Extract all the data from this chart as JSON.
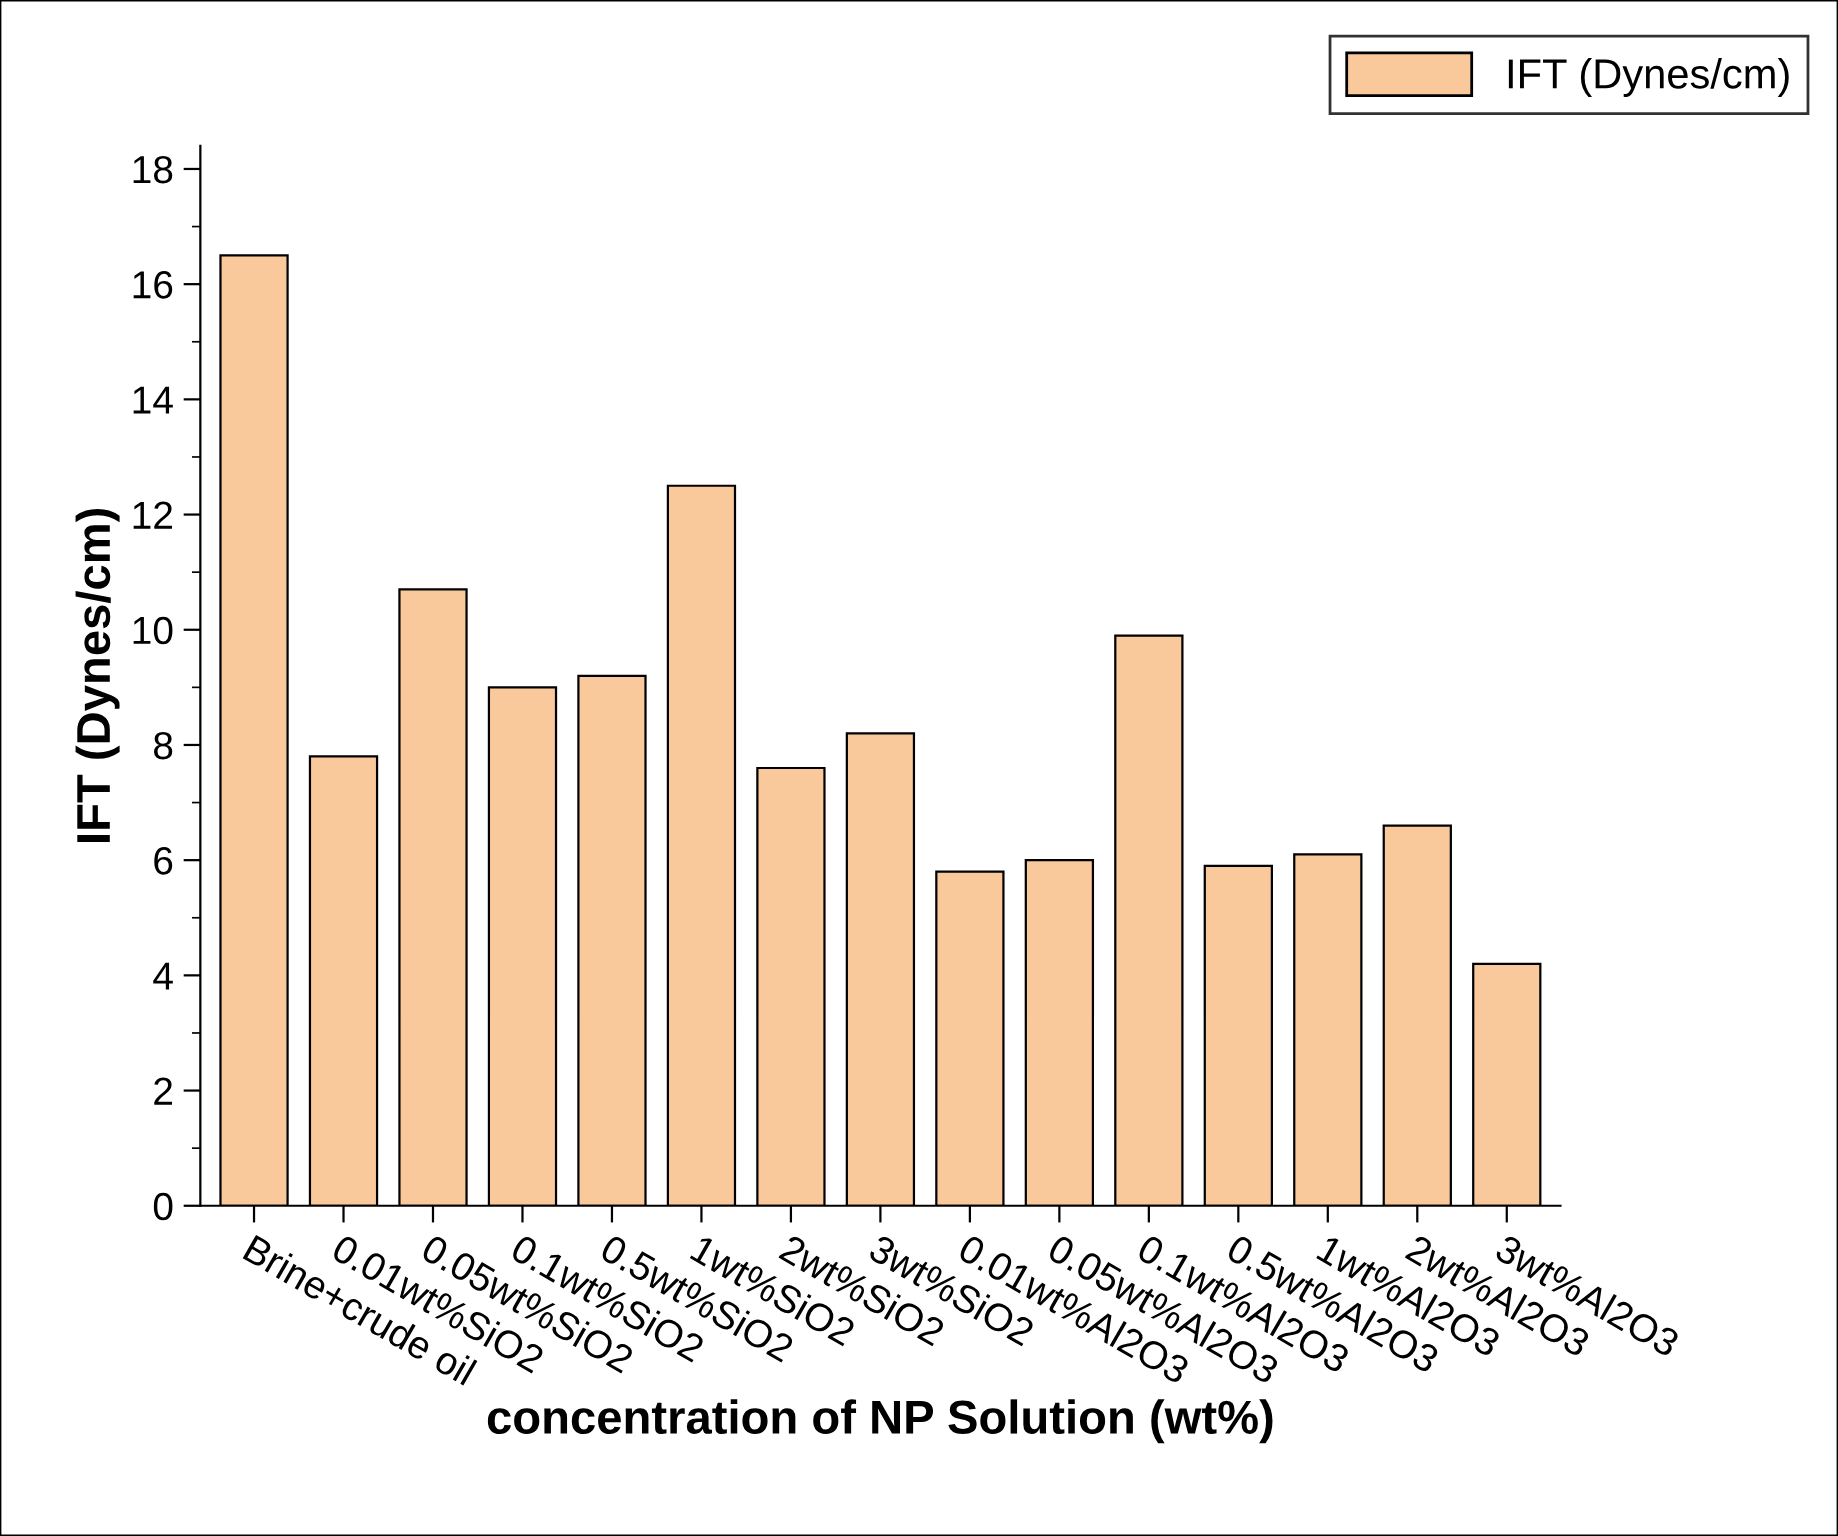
{
  "chart_data": {
    "type": "bar",
    "xlabel": "concentration of NP Solution (wt%)",
    "ylabel": "IFT (Dynes/cm)",
    "categories": [
      "Brine+crude oil",
      "0.01wt%SiO2",
      "0.05wt%SiO2",
      "0.1wt%SiO2",
      "0.5wt%SiO2",
      "1wt%SiO2",
      "2wt%SiO2",
      "3wt%SiO2",
      "0.01wt%Al2O3",
      "0.05wt%Al2O3",
      "0.1wt%Al2O3",
      "0.5wt%Al2O3",
      "1wt%Al2O3",
      "2wt%Al2O3",
      "3wt%Al2O3"
    ],
    "series": [
      {
        "name": "IFT (Dynes/cm)",
        "color": "#f9c89b",
        "values": [
          16.5,
          7.8,
          10.7,
          9.0,
          9.2,
          12.5,
          7.6,
          8.2,
          5.8,
          6.0,
          9.9,
          5.9,
          6.1,
          6.6,
          4.2
        ]
      }
    ],
    "ylim": [
      0,
      18.4
    ],
    "yticks": [
      0,
      2,
      4,
      6,
      8,
      10,
      12,
      14,
      16,
      18
    ],
    "grid": false,
    "legend": "top right"
  }
}
